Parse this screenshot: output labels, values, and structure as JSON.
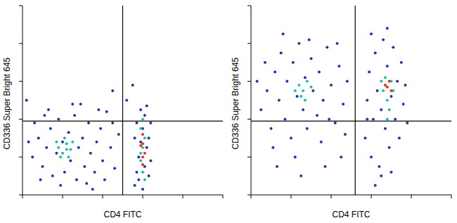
{
  "chart_data": [
    {
      "type": "scatter",
      "x_label": "CD4 FITC",
      "y_label": "CD336 Super Bright 645",
      "xlim": [
        0,
        100
      ],
      "ylim": [
        0,
        100
      ],
      "xticks": [
        0,
        20,
        40,
        60,
        80,
        100
      ],
      "yticks": [
        0,
        20,
        40,
        60,
        80,
        100
      ],
      "tick_labels": false,
      "quadrant": {
        "x": 50,
        "y": 39
      },
      "series": [
        {
          "color": "#2431a8",
          "values": [
            [
              5,
              20
            ],
            [
              8,
              30
            ],
            [
              10,
              15
            ],
            [
              12,
              25
            ],
            [
              14,
              35
            ],
            [
              15,
              10
            ],
            [
              17,
              22
            ],
            [
              18,
              40
            ],
            [
              20,
              28
            ],
            [
              21,
              12
            ],
            [
              23,
              33
            ],
            [
              24,
              18
            ],
            [
              26,
              42
            ],
            [
              27,
              8
            ],
            [
              28,
              25
            ],
            [
              30,
              30
            ],
            [
              31,
              15
            ],
            [
              33,
              38
            ],
            [
              34,
              22
            ],
            [
              36,
              12
            ],
            [
              37,
              28
            ],
            [
              39,
              35
            ],
            [
              40,
              18
            ],
            [
              42,
              44
            ],
            [
              44,
              25
            ],
            [
              46,
              14
            ],
            [
              48,
              32
            ],
            [
              6,
              38
            ],
            [
              9,
              8
            ],
            [
              13,
              45
            ],
            [
              19,
              5
            ],
            [
              25,
              48
            ],
            [
              32,
              6
            ],
            [
              38,
              45
            ],
            [
              41,
              8
            ],
            [
              45,
              38
            ],
            [
              3,
              28
            ],
            [
              11,
              42
            ],
            [
              29,
              48
            ],
            [
              35,
              3
            ],
            [
              56,
              5
            ],
            [
              57,
              12
            ],
            [
              58,
              20
            ],
            [
              59,
              28
            ],
            [
              60,
              35
            ],
            [
              61,
              42
            ],
            [
              62,
              47
            ],
            [
              63,
              30
            ],
            [
              64,
              18
            ],
            [
              57,
              38
            ],
            [
              58,
              8
            ],
            [
              63,
              10
            ],
            [
              60,
              3
            ],
            [
              59,
              45
            ],
            [
              62,
              25
            ],
            [
              56,
              30
            ],
            [
              64,
              38
            ],
            [
              61,
              15
            ],
            [
              45,
              55
            ],
            [
              52,
              50
            ],
            [
              55,
              58
            ],
            [
              2,
              50
            ]
          ]
        },
        {
          "color": "#1fbf9a",
          "values": [
            [
              18,
              25
            ],
            [
              20,
              22
            ],
            [
              22,
              27
            ],
            [
              24,
              24
            ],
            [
              21,
              30
            ],
            [
              19,
              20
            ],
            [
              23,
              20
            ],
            [
              25,
              28
            ],
            [
              17,
              28
            ],
            [
              22,
              24
            ],
            [
              59,
              18
            ],
            [
              60,
              25
            ],
            [
              61,
              30
            ],
            [
              60,
              12
            ],
            [
              59,
              35
            ],
            [
              61,
              8
            ],
            [
              60,
              40
            ],
            [
              59,
              22
            ]
          ]
        },
        {
          "color": "#e0301e",
          "values": [
            [
              60,
              20
            ],
            [
              60,
              27
            ],
            [
              61,
              22
            ],
            [
              59,
              26
            ],
            [
              60,
              16
            ],
            [
              60,
              32
            ]
          ]
        }
      ]
    },
    {
      "type": "scatter",
      "x_label": "CD4 FITC",
      "y_label": "CD336 Super Bright 645",
      "xlim": [
        0,
        100
      ],
      "ylim": [
        0,
        100
      ],
      "xticks": [
        0,
        20,
        40,
        60,
        80,
        100
      ],
      "yticks": [
        0,
        20,
        40,
        60,
        80,
        100
      ],
      "tick_labels": false,
      "quadrant": {
        "x": 52,
        "y": 39
      },
      "series": [
        {
          "color": "#2431a8",
          "values": [
            [
              5,
              45
            ],
            [
              8,
              55
            ],
            [
              10,
              35
            ],
            [
              12,
              65
            ],
            [
              14,
              50
            ],
            [
              15,
              75
            ],
            [
              17,
              40
            ],
            [
              18,
              60
            ],
            [
              20,
              30
            ],
            [
              21,
              70
            ],
            [
              23,
              52
            ],
            [
              24,
              80
            ],
            [
              26,
              45
            ],
            [
              27,
              62
            ],
            [
              28,
              35
            ],
            [
              30,
              72
            ],
            [
              31,
              55
            ],
            [
              33,
              42
            ],
            [
              34,
              65
            ],
            [
              36,
              50
            ],
            [
              38,
              78
            ],
            [
              40,
              58
            ],
            [
              42,
              38
            ],
            [
              44,
              68
            ],
            [
              46,
              48
            ],
            [
              48,
              60
            ],
            [
              7,
              70
            ],
            [
              11,
              25
            ],
            [
              16,
              85
            ],
            [
              22,
              20
            ],
            [
              29,
              82
            ],
            [
              35,
              28
            ],
            [
              39,
              40
            ],
            [
              43,
              80
            ],
            [
              47,
              32
            ],
            [
              3,
              60
            ],
            [
              13,
              15
            ],
            [
              25,
              10
            ],
            [
              37,
              15
            ],
            [
              45,
              20
            ],
            [
              57,
              30
            ],
            [
              58,
              50
            ],
            [
              59,
              65
            ],
            [
              60,
              20
            ],
            [
              61,
              40
            ],
            [
              62,
              75
            ],
            [
              63,
              55
            ],
            [
              64,
              15
            ],
            [
              65,
              45
            ],
            [
              66,
              82
            ],
            [
              67,
              35
            ],
            [
              68,
              68
            ],
            [
              69,
              25
            ],
            [
              70,
              52
            ],
            [
              71,
              78
            ],
            [
              72,
              40
            ],
            [
              73,
              60
            ],
            [
              74,
              30
            ],
            [
              75,
              70
            ],
            [
              76,
              48
            ],
            [
              77,
              58
            ],
            [
              78,
              38
            ],
            [
              60,
              85
            ],
            [
              65,
              10
            ],
            [
              70,
              12
            ],
            [
              62,
              5
            ],
            [
              68,
              88
            ],
            [
              58,
              40
            ]
          ]
        },
        {
          "color": "#1fbf9a",
          "values": [
            [
              24,
              58
            ],
            [
              26,
              55
            ],
            [
              28,
              60
            ],
            [
              25,
              52
            ],
            [
              30,
              57
            ],
            [
              22,
              55
            ],
            [
              27,
              50
            ],
            [
              66,
              55
            ],
            [
              68,
              50
            ],
            [
              70,
              60
            ],
            [
              67,
              62
            ],
            [
              69,
              45
            ],
            [
              71,
              55
            ],
            [
              65,
              60
            ],
            [
              68,
              40
            ]
          ]
        },
        {
          "color": "#e0301e",
          "values": [
            [
              68,
              57
            ],
            [
              69,
              60
            ],
            [
              70,
              55
            ],
            [
              67,
              58
            ]
          ]
        }
      ]
    }
  ]
}
